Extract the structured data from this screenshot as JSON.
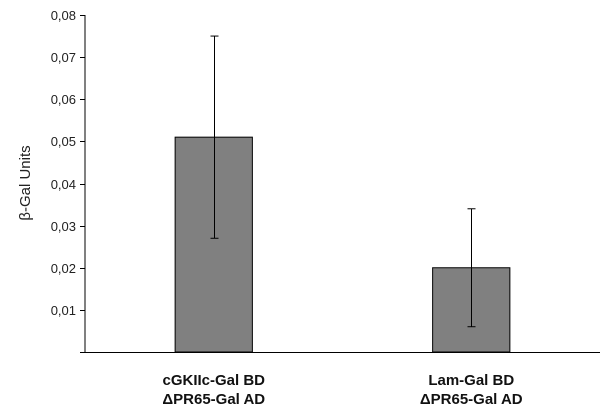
{
  "chart_data": {
    "type": "bar",
    "categories": [
      [
        "cGKIIc-Gal BD",
        "ΔPR65-Gal AD"
      ],
      [
        "Lam-Gal BD",
        "ΔPR65-Gal AD"
      ]
    ],
    "values": [
      0.051,
      0.02
    ],
    "error_bars": [
      {
        "low": 0.027,
        "high": 0.075
      },
      {
        "low": 0.006,
        "high": 0.034
      }
    ],
    "ylabel": "β-Gal Units",
    "ylim": [
      0,
      0.08
    ],
    "yticks": [
      0,
      0.01,
      0.02,
      0.03,
      0.04,
      0.05,
      0.06,
      0.07,
      0.08
    ],
    "ytick_labels": [
      "",
      "0,01",
      "0,02",
      "0,03",
      "0,04",
      "0,05",
      "0,06",
      "0,07",
      "0,08"
    ],
    "grid": false,
    "bar_color": "#808080"
  }
}
